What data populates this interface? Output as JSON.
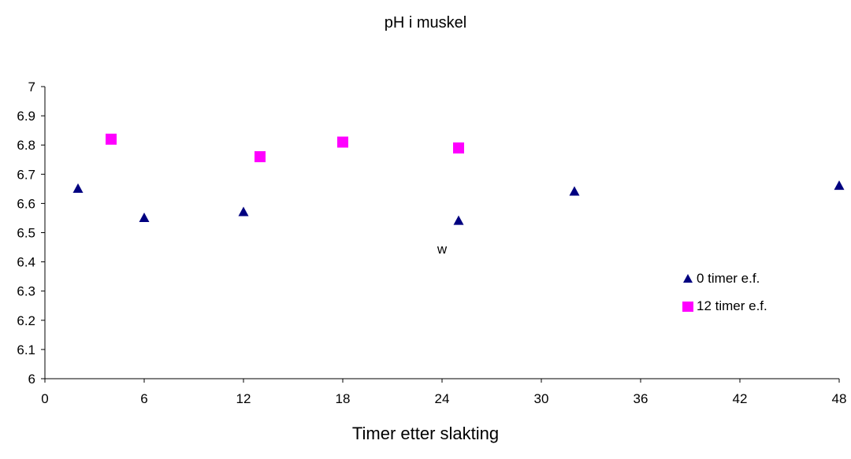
{
  "chart_data": {
    "type": "scatter",
    "title": "pH i muskel",
    "xlabel": "Timer etter slakting",
    "ylabel": "",
    "xlim": [
      0,
      48
    ],
    "ylim": [
      6,
      7
    ],
    "xticks": [
      0,
      6,
      12,
      18,
      24,
      30,
      36,
      42,
      48
    ],
    "yticks": [
      6,
      6.1,
      6.2,
      6.3,
      6.4,
      6.5,
      6.6,
      6.7,
      6.8,
      6.9,
      7
    ],
    "ytick_labels": [
      "6",
      "6.1",
      "6.2",
      "6.3",
      "6.4",
      "6.5",
      "6.6",
      "6.7",
      "6.8",
      "6.9",
      "7"
    ],
    "series": [
      {
        "name": "0 timer e.f.",
        "marker": "triangle",
        "color": "#000080",
        "x": [
          2,
          6,
          12,
          25,
          32,
          48
        ],
        "y": [
          6.65,
          6.55,
          6.57,
          6.54,
          6.64,
          6.66
        ]
      },
      {
        "name": "12 timer e.f.",
        "marker": "square",
        "color": "#FF00FF",
        "x": [
          4,
          13,
          18,
          25
        ],
        "y": [
          6.82,
          6.76,
          6.81,
          6.79
        ]
      }
    ],
    "annotations": [
      {
        "text": "w",
        "x": 24,
        "y": 6.45
      }
    ],
    "grid": false,
    "legend_position": "right"
  }
}
